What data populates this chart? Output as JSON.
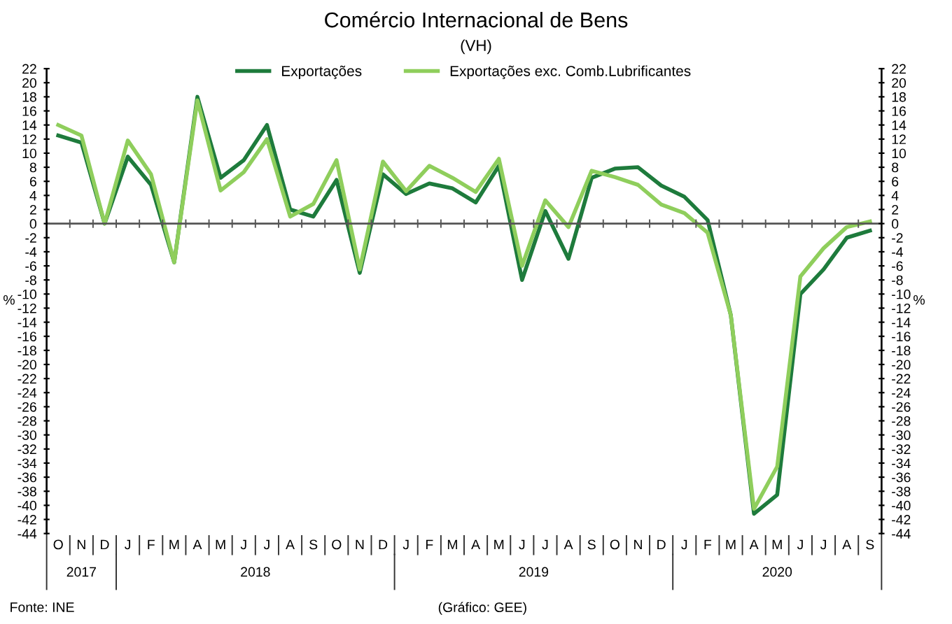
{
  "chart_data": {
    "type": "line",
    "title": "Comércio Internacional de Bens",
    "subtitle": "(VH)",
    "ylabel": "%",
    "y2label": "%",
    "categories": [
      "O",
      "N",
      "D",
      "J",
      "F",
      "M",
      "A",
      "M",
      "J",
      "J",
      "A",
      "S",
      "O",
      "N",
      "D",
      "J",
      "F",
      "M",
      "A",
      "M",
      "J",
      "J",
      "A",
      "S",
      "O",
      "N",
      "D",
      "J",
      "F",
      "M",
      "A",
      "M",
      "J",
      "J",
      "A",
      "S"
    ],
    "series": [
      {
        "name": "Exportações",
        "color": "#1e7b3c",
        "values": [
          12.5,
          11.5,
          0,
          9.5,
          5.5,
          -5.5,
          18,
          6.5,
          9,
          14,
          2,
          1,
          6.2,
          -7,
          7,
          4.2,
          5.7,
          5,
          3,
          8.2,
          -8,
          1.8,
          -5,
          6.5,
          7.8,
          8,
          5.4,
          3.8,
          0.5,
          -13,
          -41.2,
          -38.5,
          -10,
          -6.5,
          -2,
          -1
        ]
      },
      {
        "name": "Exportações exc. Comb.Lubrificantes",
        "color": "#8fce5c",
        "values": [
          14,
          12.5,
          0,
          11.8,
          7,
          -5.5,
          17.5,
          4.7,
          7.3,
          12,
          1,
          2.8,
          9,
          -6.5,
          8.8,
          4.6,
          8.2,
          6.5,
          4.5,
          9.2,
          -6,
          3.3,
          -0.5,
          7.5,
          6.6,
          5.5,
          2.7,
          1.5,
          -1.3,
          -13,
          -40.5,
          -34.5,
          -7.5,
          -3.5,
          -0.5,
          0.3
        ]
      }
    ],
    "ylim": [
      -44,
      22
    ],
    "yticks": [
      -44,
      -42,
      -40,
      -38,
      -36,
      -34,
      -32,
      -30,
      -28,
      -26,
      -24,
      -22,
      -20,
      -18,
      -16,
      -14,
      -12,
      -10,
      -8,
      -6,
      -4,
      -2,
      0,
      2,
      4,
      6,
      8,
      10,
      12,
      14,
      16,
      18,
      20,
      22
    ],
    "y2lim": [
      -44,
      22
    ],
    "y2ticks": [
      -44,
      -42,
      -40,
      -38,
      -36,
      -34,
      -32,
      -30,
      -28,
      -26,
      -24,
      -22,
      -20,
      -18,
      -16,
      -14,
      -12,
      -10,
      -8,
      -6,
      -4,
      -2,
      0,
      2,
      4,
      6,
      8,
      10,
      12,
      14,
      16,
      18,
      20,
      22
    ],
    "ref_lines": [
      {
        "axis": "y",
        "value": 0,
        "color": "#555555"
      }
    ],
    "annotations": [
      "2017",
      "2018",
      "2019",
      "2020",
      "Fonte: INE",
      "(Gráfico: GEE)"
    ],
    "grid": false,
    "legend": "top",
    "marker": "none",
    "line_style": "solid"
  }
}
